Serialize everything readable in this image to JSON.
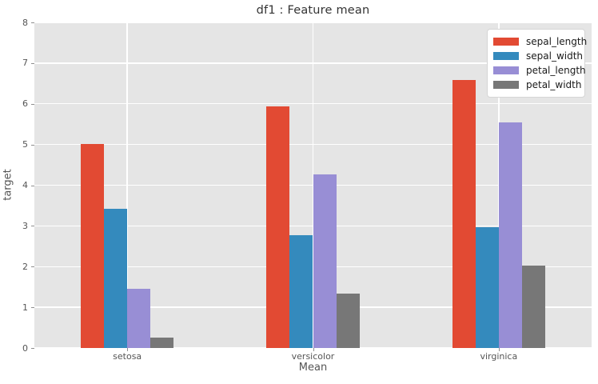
{
  "chart_data": {
    "type": "bar",
    "title": "df1 : Feature mean",
    "xlabel": "Mean",
    "ylabel": "target",
    "categories": [
      "setosa",
      "versicolor",
      "virginica"
    ],
    "series": [
      {
        "name": "sepal_length",
        "color": "#E24A33",
        "values": [
          5.01,
          5.94,
          6.59
        ]
      },
      {
        "name": "sepal_width",
        "color": "#348ABD",
        "values": [
          3.43,
          2.77,
          2.97
        ]
      },
      {
        "name": "petal_length",
        "color": "#988ED5",
        "values": [
          1.46,
          4.26,
          5.55
        ]
      },
      {
        "name": "petal_width",
        "color": "#777777",
        "values": [
          0.25,
          1.33,
          2.03
        ]
      }
    ],
    "ylim": [
      0,
      8
    ],
    "yticks": [
      0,
      1,
      2,
      3,
      4,
      5,
      6,
      7,
      8
    ],
    "grid": true,
    "legend_position": "upper right",
    "plot_bg": "#E5E5E5",
    "fig_bg": "#FFFFFF"
  }
}
